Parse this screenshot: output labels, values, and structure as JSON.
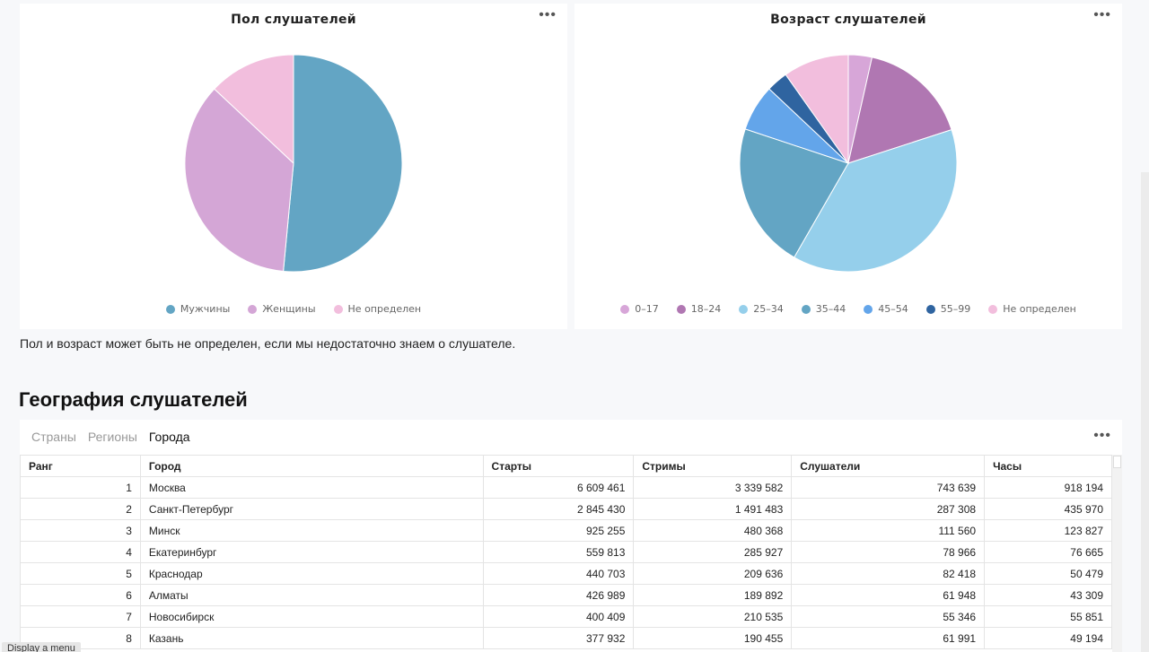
{
  "gender_chart": {
    "title": "Пол слушателей",
    "more_icon": "ellipsis-icon",
    "chart_data": {
      "type": "pie",
      "title": "Пол слушателей",
      "labels": [
        "Мужчины",
        "Женщины",
        "Не определен"
      ],
      "values": [
        51.5,
        35.5,
        13.0
      ],
      "colors": [
        "#63a5c4",
        "#d4a6d6",
        "#f2bedd"
      ],
      "legend_position": "bottom"
    }
  },
  "age_chart": {
    "title": "Возраст слушателей",
    "more_icon": "ellipsis-icon",
    "chart_data": {
      "type": "pie",
      "title": "Возраст слушателей",
      "labels": [
        "0–17",
        "18–24",
        "25–34",
        "35–44",
        "45–54",
        "55–99",
        "Не определен"
      ],
      "values": [
        3.3,
        15.5,
        36.0,
        20.5,
        6.5,
        3.0,
        9.2
      ],
      "colors": [
        "#d7a6d8",
        "#b077b2",
        "#95cfeb",
        "#63a5c4",
        "#63a5ea",
        "#2f64a0",
        "#f2bedd"
      ],
      "legend_position": "bottom"
    }
  },
  "note": "Пол и возраст может быть не определен, если мы недостаточно знаем о слушателе.",
  "geo": {
    "title": "География слушателей",
    "tabs": [
      {
        "label": "Страны",
        "active": false
      },
      {
        "label": "Регионы",
        "active": false
      },
      {
        "label": "Города",
        "active": true
      }
    ],
    "more_icon": "ellipsis-icon",
    "columns": [
      "Ранг",
      "Город",
      "Старты",
      "Стримы",
      "Слушатели",
      "Часы"
    ],
    "rows": [
      [
        "1",
        "Москва",
        "6 609 461",
        "3 339 582",
        "743 639",
        "918 194"
      ],
      [
        "2",
        "Санкт-Петербург",
        "2 845 430",
        "1 491 483",
        "287 308",
        "435 970"
      ],
      [
        "3",
        "Минск",
        "925 255",
        "480 368",
        "111 560",
        "123 827"
      ],
      [
        "4",
        "Екатеринбург",
        "559 813",
        "285 927",
        "78 966",
        "76 665"
      ],
      [
        "5",
        "Краснодар",
        "440 703",
        "209 636",
        "82 418",
        "50 479"
      ],
      [
        "6",
        "Алматы",
        "426 989",
        "189 892",
        "61 948",
        "43 309"
      ],
      [
        "7",
        "Новосибирск",
        "400 409",
        "210 535",
        "55 346",
        "55 851"
      ],
      [
        "8",
        "Казань",
        "377 932",
        "190 455",
        "61 991",
        "49 194"
      ]
    ]
  },
  "tooltip": "Display a menu"
}
